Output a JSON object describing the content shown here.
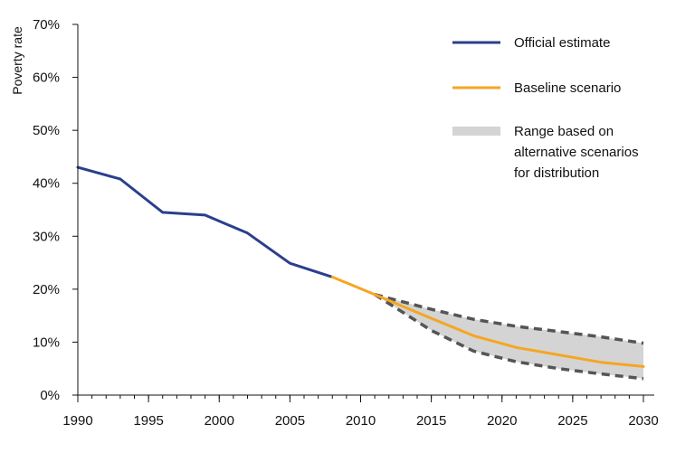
{
  "chart_data": {
    "type": "line",
    "ylabel": "Poverty rate",
    "xlabel": "",
    "title": "",
    "xlim": [
      1990,
      2030
    ],
    "ylim": [
      0,
      70
    ],
    "x_ticks": [
      "1990",
      "1995",
      "2000",
      "2005",
      "2010",
      "2015",
      "2020",
      "2025",
      "2030"
    ],
    "y_ticks": [
      "0%",
      "10%",
      "20%",
      "30%",
      "40%",
      "50%",
      "60%",
      "70%"
    ],
    "grid": false,
    "legend_position": "top-right",
    "series": [
      {
        "name": "Official estimate",
        "color": "#2b3f8c",
        "points": [
          [
            1990,
            43
          ],
          [
            1993,
            40.8
          ],
          [
            1996,
            34.5
          ],
          [
            1999,
            34
          ],
          [
            2002,
            30.6
          ],
          [
            2005,
            24.9
          ],
          [
            2008,
            22.3
          ]
        ]
      },
      {
        "name": "Baseline scenario",
        "color": "#f5a623",
        "points": [
          [
            2008,
            22.3
          ],
          [
            2011,
            19
          ],
          [
            2015,
            14.5
          ],
          [
            2018,
            11.2
          ],
          [
            2021,
            9
          ],
          [
            2024,
            7.6
          ],
          [
            2027,
            6.2
          ],
          [
            2030,
            5.4
          ]
        ]
      }
    ],
    "range": {
      "name": "Range based on alternative scenarios for distribution",
      "name_lines": [
        "Range based on",
        "alternative scenarios",
        "for distribution"
      ],
      "fill_color": "#d4d4d4",
      "line_color": "#555555",
      "upper": [
        [
          2011,
          19
        ],
        [
          2015,
          16.2
        ],
        [
          2018,
          14.3
        ],
        [
          2021,
          13
        ],
        [
          2024,
          12
        ],
        [
          2027,
          11
        ],
        [
          2030,
          9.8
        ]
      ],
      "lower": [
        [
          2011,
          19
        ],
        [
          2015,
          12.2
        ],
        [
          2018,
          8.3
        ],
        [
          2021,
          6.3
        ],
        [
          2024,
          5
        ],
        [
          2027,
          4
        ],
        [
          2030,
          3.1
        ]
      ]
    }
  }
}
